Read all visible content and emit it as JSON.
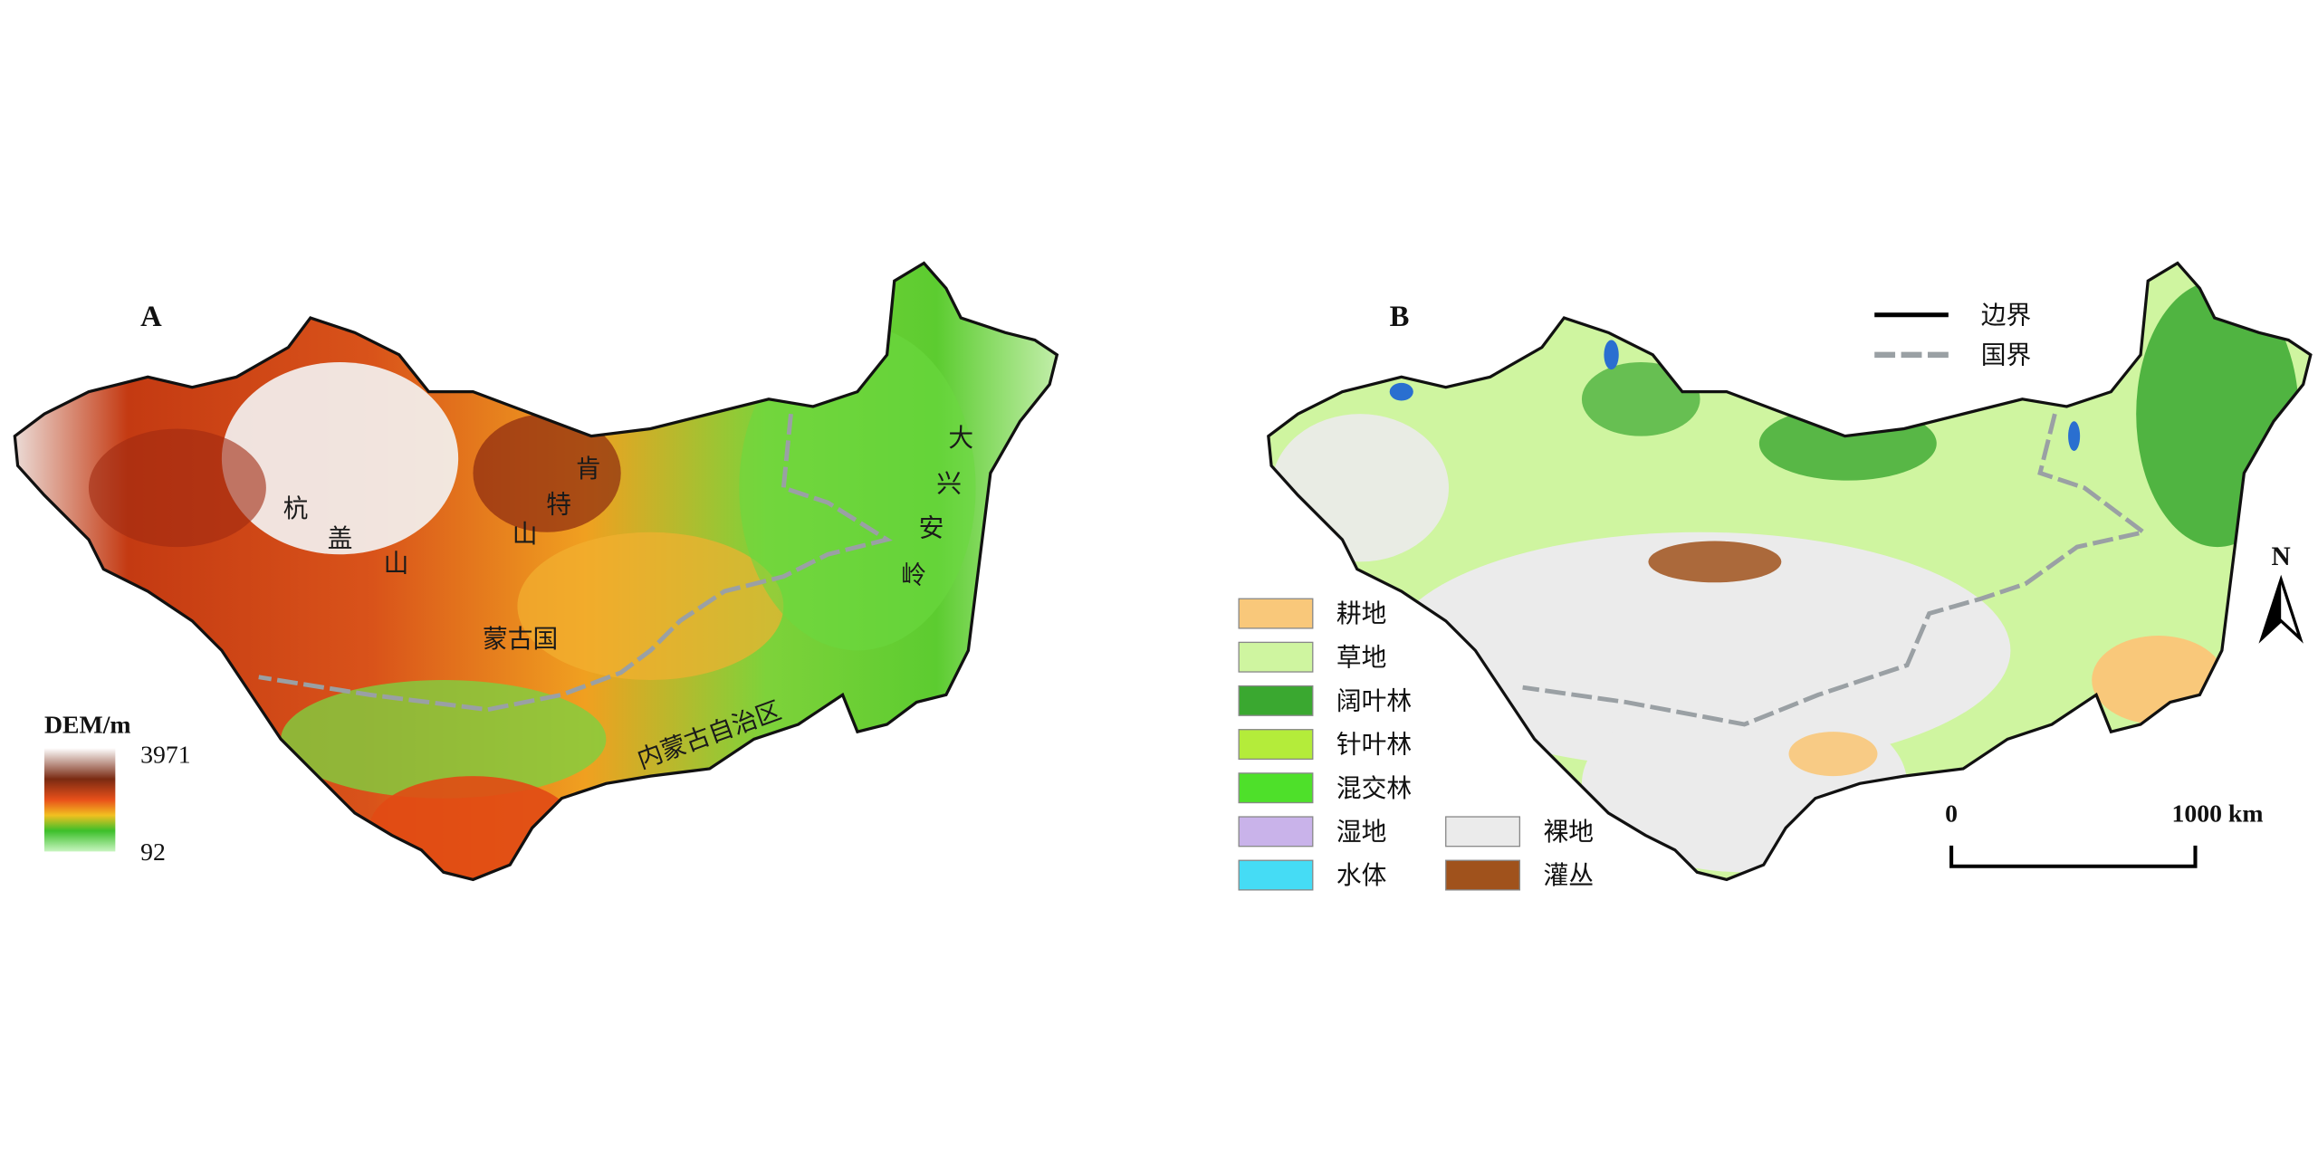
{
  "panel_a": {
    "label": "A",
    "places": [
      "杭",
      "盖",
      "山",
      "肯",
      "特",
      "山",
      "蒙古国",
      "大",
      "兴",
      "安",
      "岭",
      "内蒙古自治区"
    ],
    "legend": {
      "title": "DEM/m",
      "max": 3971,
      "min": 92
    }
  },
  "panel_b": {
    "label": "B",
    "legend": [
      {
        "label": "耕地",
        "color": "#f9c87a"
      },
      {
        "label": "草地",
        "color": "#cff5a0"
      },
      {
        "label": "阔叶林",
        "color": "#3aa830"
      },
      {
        "label": "针叶林",
        "color": "#b4ec3a"
      },
      {
        "label": "混交林",
        "color": "#4ee02a"
      },
      {
        "label": "湿地",
        "color": "#c9b3ea"
      },
      {
        "label": "水体",
        "color": "#45dcf5"
      },
      {
        "label": "裸地",
        "color": "#ebebeb"
      },
      {
        "label": "灌丛",
        "color": "#a0521c"
      }
    ],
    "boundary_legend": [
      "边界",
      "国界"
    ],
    "north": "N",
    "scale": {
      "start": 0,
      "end": "1000 km"
    }
  }
}
